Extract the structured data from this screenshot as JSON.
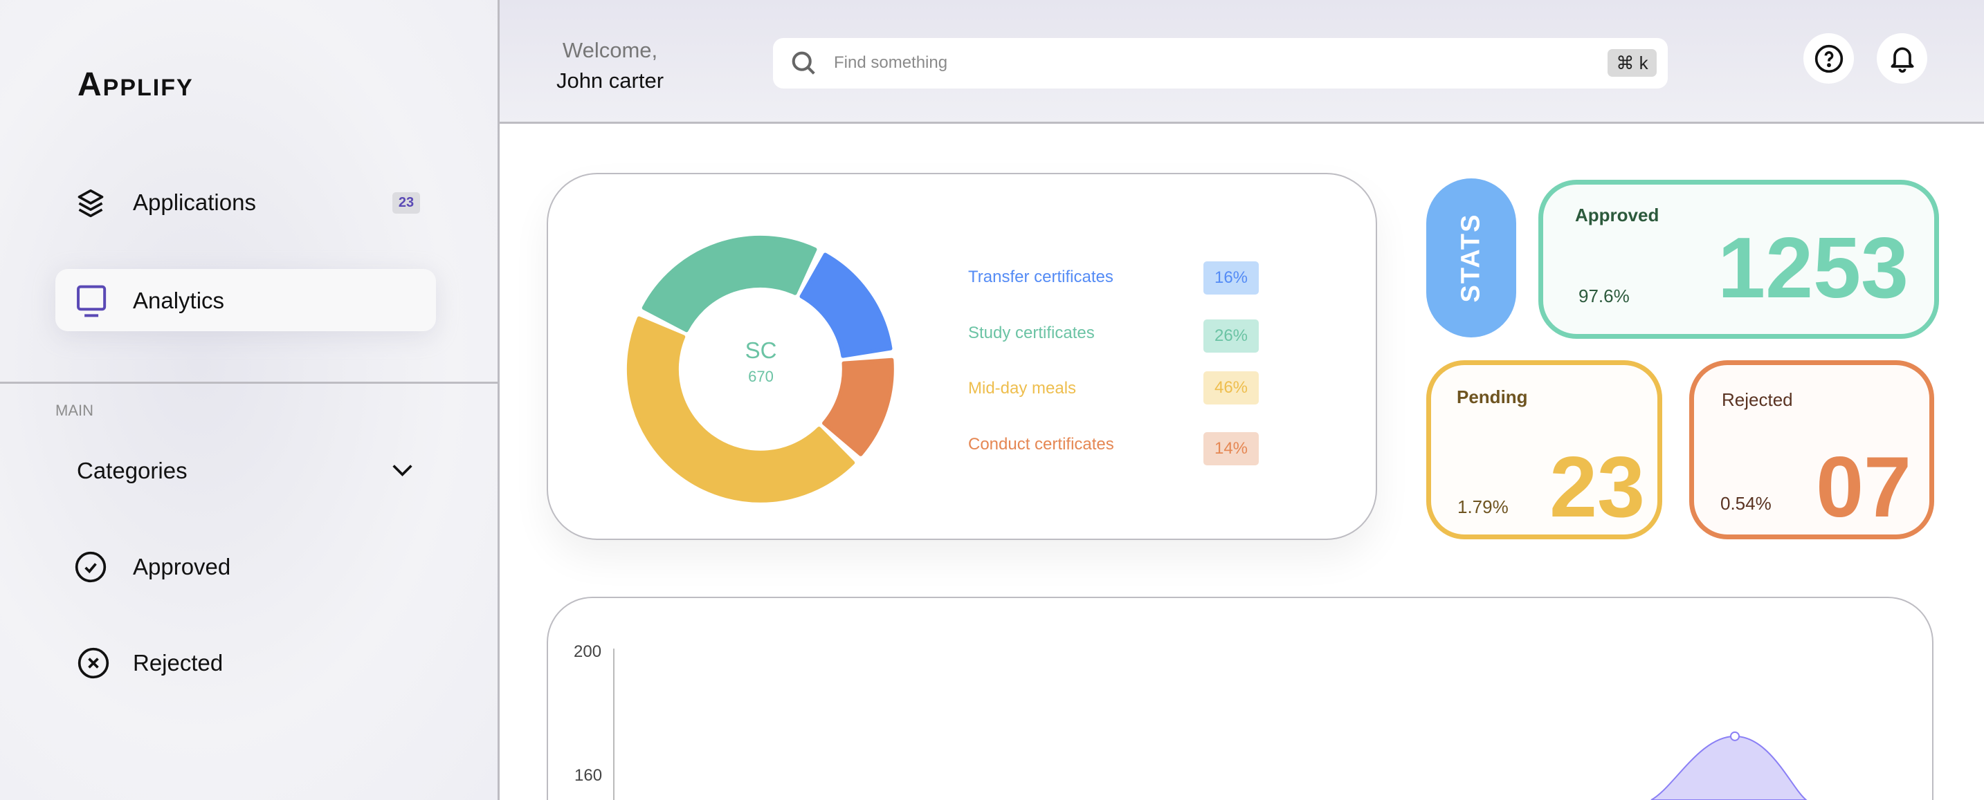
{
  "app": {
    "name": "Applify"
  },
  "sidebar": {
    "items": [
      {
        "label": "Applications",
        "icon": "layers-icon",
        "badge": "23"
      },
      {
        "label": "Analytics",
        "icon": "monitor-icon",
        "active": true
      }
    ],
    "section_label": "MAIN",
    "main_items": [
      {
        "label": "Categories",
        "icon": "chevron-down-icon"
      },
      {
        "label": "Approved",
        "icon": "check-circle-icon"
      },
      {
        "label": "Rejected",
        "icon": "x-circle-icon"
      }
    ]
  },
  "header": {
    "welcome": "Welcome,",
    "user": "John carter",
    "search": {
      "placeholder": "Find something",
      "shortcut": "⌘ k"
    },
    "icons": [
      "help-icon",
      "bell-icon"
    ]
  },
  "donut": {
    "center_label": "SC",
    "center_value": "670",
    "segments": [
      {
        "label": "Transfer certificates",
        "percent": "16%",
        "value": 16,
        "color": "#548bf5",
        "bg": "#c0dbfb"
      },
      {
        "label": "Study certificates",
        "percent": "26%",
        "value": 26,
        "color": "#6bc3a4",
        "bg": "#c3ebdf"
      },
      {
        "label": "Mid-day meals",
        "percent": "46%",
        "value": 46,
        "color": "#eebe4e",
        "bg": "#faebc3"
      },
      {
        "label": "Conduct certificates",
        "percent": "14%",
        "value": 14,
        "color": "#e58753",
        "bg": "#f5d9c9"
      }
    ]
  },
  "stats": {
    "label": "STATS",
    "approved": {
      "title": "Approved",
      "percent": "97.6%",
      "count": "1253",
      "color": "#76d3b4"
    },
    "pending": {
      "title": "Pending",
      "percent": "1.79%",
      "count": "23",
      "color": "#eebe4e"
    },
    "rejected": {
      "title": "Rejected",
      "percent": "0.54%",
      "count": "07",
      "color": "#e58753"
    }
  },
  "chart_data": {
    "type": "area",
    "y_ticks": [
      "200",
      "160"
    ],
    "ylim_visible": [
      145,
      200
    ],
    "peak_value": 173,
    "grid": false,
    "color": "#8a7ff5",
    "fill": "#d9d5fa"
  }
}
